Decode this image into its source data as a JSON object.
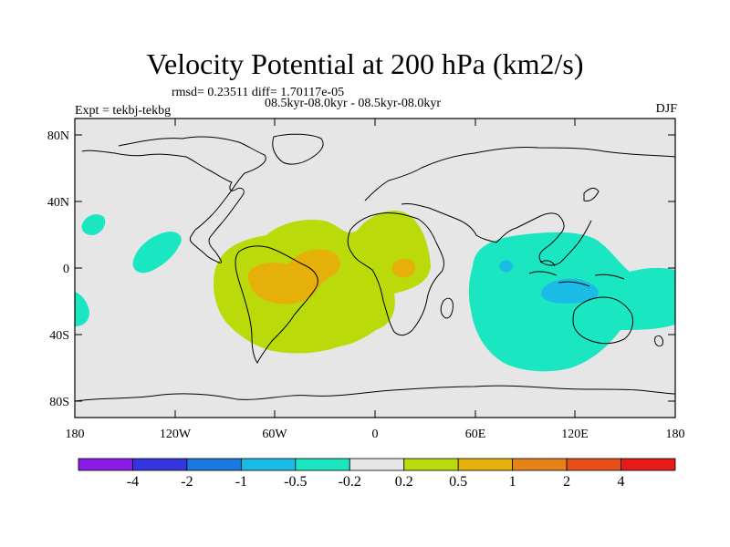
{
  "title": "Velocity Potential at 200 hPa (km2/s)",
  "stats": "rmsd= 0.23511 diff= 1.70117e-05",
  "period": "08.5kyr-08.0kyr - 08.5kyr-08.0kyr",
  "experiment": "Expt = tekbj-tekbg",
  "season": "DJF",
  "lat_labels": [
    "80N",
    "40N",
    "0",
    "40S",
    "80S"
  ],
  "lon_labels": [
    "180",
    "120W",
    "60W",
    "0",
    "60E",
    "120E",
    "180"
  ],
  "colorbar": {
    "labels": [
      "-4",
      "-2",
      "-1",
      "-0.5",
      "-0.2",
      "0.2",
      "0.5",
      "1",
      "2",
      "4"
    ],
    "colors": [
      "#8a1ae6",
      "#3535e0",
      "#1a78e0",
      "#1abce6",
      "#1ae6c2",
      "#e6e6e6",
      "#bada0a",
      "#e6b00a",
      "#e6821a",
      "#e64e1a",
      "#e61a1a"
    ]
  },
  "fields": {
    "background": "#e6e6e6",
    "positive_low": "#bada0a",
    "positive_mid": "#e6b00a",
    "negative_low": "#1ae6c2",
    "negative_mid": "#1abce6"
  }
}
